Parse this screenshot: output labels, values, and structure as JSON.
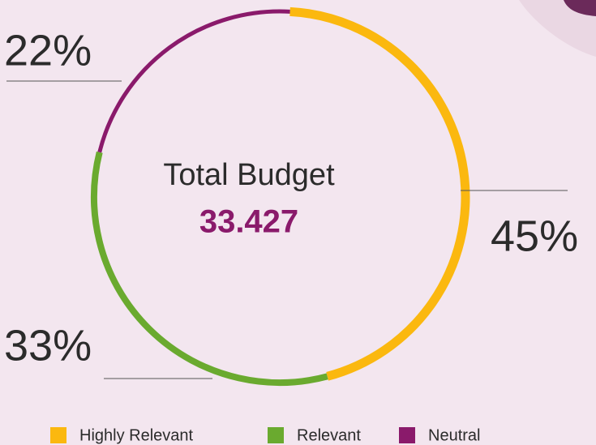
{
  "chart_data": {
    "type": "donut",
    "center_label": "Total Budget",
    "center_value": 33.427,
    "categories": [
      "Highly Relevant",
      "Relevant",
      "Neutral"
    ],
    "values": [
      45,
      33,
      22
    ],
    "value_labels": [
      "45%",
      "33%",
      "22%"
    ],
    "colors": [
      "#fbb80f",
      "#6aaa2f",
      "#8a1a6b"
    ],
    "legend": "bottom"
  }
}
